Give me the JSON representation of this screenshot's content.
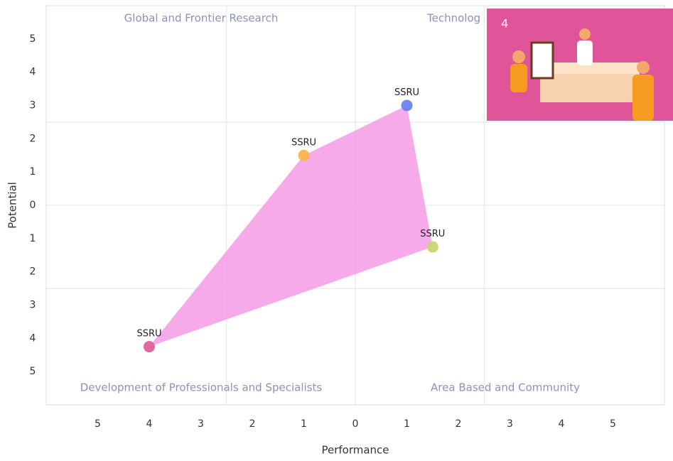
{
  "chart_data": {
    "type": "scatter",
    "x_label": "Performance",
    "y_label": "Potential",
    "x": [
      -1,
      1,
      1.5,
      -4
    ],
    "values": [
      1.5,
      3,
      -1.25,
      -4.25
    ],
    "point_labels": [
      "SSRU",
      "SSRU",
      "SSRU",
      "SSRU"
    ],
    "colors": [
      "#f9b54c",
      "#6b7ff5",
      "#c9d66a",
      "#e0609e"
    ],
    "polygon_color": "#f49be6",
    "quadrant_labels": [
      "Global and Frontier Research",
      "Technolog",
      "Development of Professionals and Specialists",
      "Area Based and Community"
    ],
    "xlim": [
      -6,
      6
    ],
    "ylim": [
      -6,
      6
    ],
    "xticks": [
      {
        "value": -5,
        "label": "5"
      },
      {
        "value": -4,
        "label": "4"
      },
      {
        "value": -3,
        "label": "3"
      },
      {
        "value": -2,
        "label": "2"
      },
      {
        "value": -1,
        "label": "1"
      },
      0,
      1,
      2,
      3,
      4,
      5
    ],
    "yticks": [
      5,
      4,
      3,
      2,
      1,
      0,
      {
        "value": -1,
        "label": "1"
      },
      {
        "value": -2,
        "label": "2"
      },
      {
        "value": -3,
        "label": "3"
      },
      {
        "value": -4,
        "label": "4"
      },
      {
        "value": -5,
        "label": "5"
      }
    ],
    "grid_x": [
      -2.5,
      0,
      2.5
    ],
    "grid_y": [
      -2.5,
      0,
      2.5
    ]
  },
  "overlay": {
    "badge": "4"
  }
}
